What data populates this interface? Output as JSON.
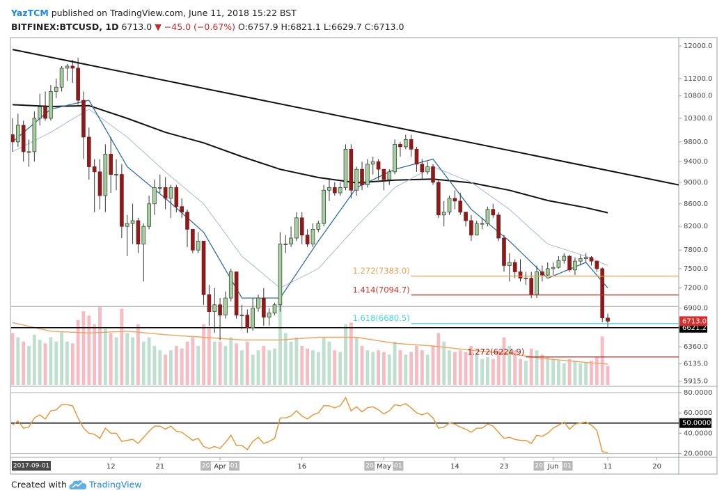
{
  "header": {
    "author": "YazTCM",
    "byline": "published on TradingView.com, June 11, 2018 15:22 BST",
    "symbol": "BITFINEX:BTCUSD, 1D",
    "last": "6713.0",
    "change": "▼ −45.0 (−0.67%)",
    "ohlc": "O:6757.9 H:6821.1 L:6629.7 C:6713.0"
  },
  "footer": {
    "text": "Created with",
    "brand": "TradingView"
  },
  "chart_data": {
    "type": "candlestick",
    "log": true,
    "xlim": [
      "2018-02-22",
      "2018-06-24"
    ],
    "ylim": [
      5868,
      12195
    ],
    "x": [
      "2018-02-22",
      "2018-02-23",
      "2018-02-24",
      "2018-02-25",
      "2018-02-26",
      "2018-02-27",
      "2018-02-28",
      "2018-03-01",
      "2018-03-02",
      "2018-03-03",
      "2018-03-04",
      "2018-03-05",
      "2018-03-06",
      "2018-03-07",
      "2018-03-08",
      "2018-03-09",
      "2018-03-10",
      "2018-03-11",
      "2018-03-12",
      "2018-03-13",
      "2018-03-14",
      "2018-03-15",
      "2018-03-16",
      "2018-03-17",
      "2018-03-18",
      "2018-03-19",
      "2018-03-20",
      "2018-03-21",
      "2018-03-22",
      "2018-03-23",
      "2018-03-24",
      "2018-03-25",
      "2018-03-26",
      "2018-03-27",
      "2018-03-28",
      "2018-03-29",
      "2018-03-30",
      "2018-03-31",
      "2018-04-01",
      "2018-04-02",
      "2018-04-03",
      "2018-04-04",
      "2018-04-05",
      "2018-04-06",
      "2018-04-07",
      "2018-04-08",
      "2018-04-09",
      "2018-04-10",
      "2018-04-11",
      "2018-04-12",
      "2018-04-13",
      "2018-04-14",
      "2018-04-15",
      "2018-04-16",
      "2018-04-17",
      "2018-04-18",
      "2018-04-19",
      "2018-04-20",
      "2018-04-21",
      "2018-04-22",
      "2018-04-23",
      "2018-04-24",
      "2018-04-25",
      "2018-04-26",
      "2018-04-27",
      "2018-04-28",
      "2018-04-29",
      "2018-04-30",
      "2018-05-01",
      "2018-05-02",
      "2018-05-03",
      "2018-05-04",
      "2018-05-05",
      "2018-05-06",
      "2018-05-07",
      "2018-05-08",
      "2018-05-09",
      "2018-05-10",
      "2018-05-11",
      "2018-05-12",
      "2018-05-13",
      "2018-05-14",
      "2018-05-15",
      "2018-05-16",
      "2018-05-17",
      "2018-05-18",
      "2018-05-19",
      "2018-05-20",
      "2018-05-21",
      "2018-05-22",
      "2018-05-23",
      "2018-05-24",
      "2018-05-25",
      "2018-05-26",
      "2018-05-27",
      "2018-05-28",
      "2018-05-29",
      "2018-05-30",
      "2018-05-31",
      "2018-06-01",
      "2018-06-02",
      "2018-06-03",
      "2018-06-04",
      "2018-06-05",
      "2018-06-06",
      "2018-06-07",
      "2018-06-08",
      "2018-06-09",
      "2018-06-10",
      "2018-06-11"
    ],
    "open": [
      9950,
      9800,
      10150,
      9600,
      9600,
      10300,
      10550,
      10300,
      10900,
      11000,
      11450,
      11500,
      11450,
      10700,
      9900,
      9300,
      9200,
      8750,
      9550,
      9150,
      9150,
      8200,
      8250,
      8300,
      7900,
      8200,
      8600,
      8900,
      8900,
      8700,
      8900,
      8550,
      8450,
      8150,
      7800,
      7950,
      7100,
      6850,
      6950,
      6800,
      7050,
      7450,
      6800,
      6800,
      6620,
      6900,
      7050,
      6770,
      6830,
      6950,
      7900,
      7900,
      8000,
      8350,
      8050,
      7900,
      8150,
      8250,
      8850,
      8900,
      8800,
      8900,
      9650,
      8850,
      9250,
      8950,
      9350,
      9400,
      9250,
      9050,
      9200,
      9750,
      9700,
      9850,
      9650,
      9350,
      9200,
      9300,
      9000,
      8400,
      8450,
      8700,
      8650,
      8450,
      8300,
      8050,
      8250,
      8250,
      8500,
      8400,
      8000,
      7550,
      7600,
      7450,
      7350,
      7350,
      7100,
      7450,
      7400,
      7500,
      7520,
      7630,
      7700,
      7480,
      7620,
      7660,
      7680,
      7620,
      7500,
      6757.9
    ],
    "high": [
      10300,
      10400,
      10250,
      9850,
      10450,
      10850,
      10900,
      11050,
      11200,
      11500,
      11550,
      11650,
      11700,
      10900,
      10100,
      9450,
      9450,
      9750,
      9900,
      9450,
      9350,
      8400,
      8600,
      8350,
      8250,
      8750,
      9050,
      9150,
      9100,
      8950,
      8950,
      8700,
      8500,
      8150,
      8100,
      7950,
      7250,
      7200,
      7050,
      7150,
      7500,
      7450,
      6950,
      6880,
      7050,
      7100,
      7200,
      6900,
      6980,
      8100,
      8050,
      8200,
      8450,
      8450,
      8150,
      8250,
      8300,
      8950,
      9050,
      9000,
      9000,
      9750,
      9750,
      9300,
      9400,
      9450,
      9500,
      9450,
      9250,
      9250,
      9850,
      9800,
      9950,
      9950,
      9700,
      9450,
      9400,
      9350,
      9050,
      8650,
      8750,
      8850,
      8800,
      8450,
      8400,
      8300,
      8350,
      8550,
      8600,
      8450,
      8050,
      7750,
      7650,
      7650,
      7450,
      7450,
      7550,
      7550,
      7600,
      7600,
      7700,
      7750,
      7720,
      7680,
      7720,
      7750,
      7700,
      7630,
      7520,
      6821.1
    ],
    "low": [
      9600,
      9700,
      9400,
      9300,
      9400,
      10150,
      10250,
      10250,
      10750,
      10900,
      11150,
      11100,
      10600,
      9450,
      9050,
      8450,
      8500,
      8450,
      8800,
      8850,
      8000,
      7700,
      7900,
      7750,
      7300,
      8150,
      8400,
      8800,
      8500,
      8350,
      8450,
      8350,
      7850,
      7750,
      7750,
      6950,
      6650,
      6550,
      6450,
      6750,
      7000,
      6750,
      6600,
      6550,
      6580,
      6850,
      6650,
      6650,
      6800,
      6850,
      7750,
      7850,
      7950,
      7900,
      7850,
      7850,
      8100,
      8200,
      8650,
      8750,
      8750,
      8850,
      8700,
      8750,
      8850,
      8900,
      9150,
      9050,
      8850,
      8950,
      9150,
      9500,
      9650,
      9500,
      9200,
      9050,
      9150,
      8950,
      8350,
      8200,
      8400,
      8500,
      8400,
      8200,
      7950,
      8050,
      8150,
      8200,
      8350,
      7950,
      7450,
      7300,
      7350,
      7300,
      7250,
      7050,
      7050,
      7300,
      7380,
      7400,
      7500,
      7580,
      7450,
      7400,
      7550,
      7600,
      7550,
      7450,
      6700,
      6629.7
    ],
    "close": [
      9800,
      10150,
      9600,
      9600,
      10300,
      10550,
      10300,
      10900,
      11000,
      11450,
      11500,
      11450,
      10700,
      9900,
      9300,
      9200,
      8750,
      9550,
      9150,
      9150,
      8200,
      8250,
      8300,
      7900,
      8200,
      8600,
      8900,
      8900,
      8700,
      8900,
      8550,
      8450,
      8150,
      7800,
      7950,
      7100,
      6850,
      6950,
      6800,
      7050,
      7450,
      6800,
      6800,
      6620,
      6900,
      7050,
      6770,
      6830,
      6950,
      7900,
      7900,
      8000,
      8350,
      8050,
      7900,
      8150,
      8250,
      8850,
      8900,
      8800,
      8900,
      9650,
      8850,
      9250,
      8950,
      9350,
      9400,
      9250,
      9050,
      9200,
      9750,
      9700,
      9850,
      9650,
      9350,
      9200,
      9300,
      9000,
      8400,
      8450,
      8700,
      8650,
      8450,
      8300,
      8050,
      8250,
      8250,
      8500,
      8400,
      8000,
      7550,
      7600,
      7450,
      7350,
      7350,
      7100,
      7450,
      7400,
      7500,
      7520,
      7630,
      7700,
      7480,
      7620,
      7660,
      7680,
      7620,
      7500,
      6760,
      6713.0
    ],
    "up_color": "#a6cf9e",
    "down_color": "#8b1c1c",
    "volume": {
      "ylim": [
        0,
        400
      ],
      "up_color": "#bfe0cf",
      "down_color": "#f6bcc4",
      "values": [
        60,
        55,
        50,
        45,
        58,
        52,
        48,
        55,
        50,
        62,
        50,
        48,
        75,
        85,
        80,
        70,
        90,
        65,
        60,
        55,
        88,
        60,
        55,
        70,
        50,
        55,
        45,
        40,
        35,
        40,
        45,
        42,
        50,
        55,
        45,
        70,
        65,
        50,
        50,
        45,
        55,
        48,
        40,
        50,
        35,
        40,
        45,
        40,
        42,
        95,
        60,
        50,
        55,
        45,
        42,
        40,
        38,
        55,
        50,
        40,
        38,
        70,
        72,
        55,
        45,
        40,
        38,
        40,
        38,
        35,
        50,
        40,
        35,
        38,
        45,
        40,
        35,
        45,
        60,
        50,
        40,
        38,
        40,
        38,
        45,
        35,
        30,
        32,
        30,
        40,
        55,
        45,
        40,
        30,
        28,
        42,
        40,
        35,
        32,
        30,
        28,
        25,
        30,
        28,
        25,
        26,
        28,
        32,
        56,
        22
      ],
      "ma": {
        "color": "#f0a35a",
        "x": [
          "2018-02-22",
          "2018-03-01",
          "2018-03-08",
          "2018-03-15",
          "2018-03-22",
          "2018-03-29",
          "2018-04-05",
          "2018-04-12",
          "2018-04-19",
          "2018-04-26",
          "2018-05-03",
          "2018-05-10",
          "2018-05-17",
          "2018-05-24",
          "2018-05-31",
          "2018-06-07",
          "2018-06-11"
        ],
        "values": [
          72,
          62,
          60,
          62,
          58,
          55,
          52,
          52,
          55,
          55,
          48,
          45,
          40,
          36,
          30,
          26,
          24
        ]
      }
    },
    "ma_lines": [
      {
        "color": "#111111",
        "width": 2,
        "x": [
          "2018-02-22",
          "2018-03-01",
          "2018-03-08",
          "2018-03-15",
          "2018-03-22",
          "2018-03-29",
          "2018-04-05",
          "2018-04-12",
          "2018-04-19",
          "2018-04-26",
          "2018-05-03",
          "2018-05-10",
          "2018-05-17",
          "2018-05-24",
          "2018-05-31",
          "2018-06-07",
          "2018-06-11"
        ],
        "values": [
          10600,
          10560,
          10580,
          10300,
          10000,
          9780,
          9500,
          9250,
          9090,
          8990,
          9040,
          9060,
          8990,
          8850,
          8660,
          8530,
          8440
        ]
      },
      {
        "color": "#aeb4e0",
        "width": 1,
        "x": [
          "2018-02-22",
          "2018-03-01",
          "2018-03-08",
          "2018-03-15",
          "2018-03-22",
          "2018-03-29",
          "2018-04-05",
          "2018-04-12",
          "2018-04-19",
          "2018-04-26",
          "2018-05-03",
          "2018-05-10",
          "2018-05-17",
          "2018-05-24",
          "2018-05-31",
          "2018-06-07",
          "2018-06-11"
        ],
        "values": [
          9600,
          10000,
          10500,
          9900,
          9200,
          8600,
          7700,
          7200,
          7500,
          8200,
          8900,
          9300,
          9000,
          8500,
          7900,
          7700,
          7550
        ]
      },
      {
        "color": "#2f6f9f",
        "width": 1.3,
        "x": [
          "2018-02-22",
          "2018-03-01",
          "2018-03-08",
          "2018-03-15",
          "2018-03-22",
          "2018-03-29",
          "2018-04-05",
          "2018-04-12",
          "2018-04-19",
          "2018-04-26",
          "2018-05-03",
          "2018-05-10",
          "2018-05-17",
          "2018-05-24",
          "2018-05-31",
          "2018-06-07",
          "2018-06-11"
        ],
        "values": [
          9800,
          10500,
          10700,
          9300,
          8700,
          8100,
          7050,
          7050,
          7950,
          8900,
          9250,
          9450,
          8500,
          7950,
          7350,
          7600,
          7200
        ]
      }
    ],
    "trendline": {
      "color": "#111111",
      "x": [
        "2018-02-22",
        "2018-06-24"
      ],
      "values": [
        11910,
        8950
      ]
    },
    "hlines": [
      {
        "value": 6925,
        "color": "#b0b0b0"
      },
      {
        "value": 6621.2,
        "color": "#000000",
        "label": "6621.2"
      }
    ],
    "levels": [
      {
        "label": "1.272(7383.0)",
        "value": 7383.0,
        "color": "#e8a24a",
        "start": "2018-05-06"
      },
      {
        "label": "1.414(7094.7)",
        "value": 7094.7,
        "color": "#c0392b",
        "start": "2018-05-06"
      },
      {
        "label": "1.618(6680.5)",
        "value": 6680.5,
        "color": "#3fd4e8",
        "start": "2018-05-06"
      },
      {
        "label": "1.272(6224.9)",
        "value": 6224.9,
        "color": "#a31515",
        "start": "2018-05-27"
      }
    ],
    "last_price": {
      "value": 6713.0,
      "label": "6713.0",
      "color": "#d32f2f"
    },
    "yticks": [
      {
        "value": 12000,
        "label": "12000.0"
      },
      {
        "value": 11200,
        "label": "11200.0"
      },
      {
        "value": 10800,
        "label": "10800.0"
      },
      {
        "value": 10300,
        "label": "10300.0"
      },
      {
        "value": 9800,
        "label": "9800.0"
      },
      {
        "value": 9400,
        "label": "9400.0"
      },
      {
        "value": 9000,
        "label": "9000.0"
      },
      {
        "value": 8600,
        "label": "8600.0"
      },
      {
        "value": 8200,
        "label": "8200.0"
      },
      {
        "value": 7800,
        "label": "7800.0"
      },
      {
        "value": 7500,
        "label": "7500.0"
      },
      {
        "value": 7200,
        "label": "7200.0"
      },
      {
        "value": 6900,
        "label": "6900.0"
      },
      {
        "value": 6360,
        "label": "6360.0"
      },
      {
        "value": 6135,
        "label": "6135.0"
      },
      {
        "value": 5915,
        "label": "5915.0"
      }
    ],
    "xticks": [
      {
        "value": "2018-03-12",
        "label": "12"
      },
      {
        "value": "2018-03-21",
        "label": "21"
      },
      {
        "value": "2018-04-01",
        "label": "Apr"
      },
      {
        "value": "2018-04-16",
        "label": "16"
      },
      {
        "value": "2018-05-01",
        "label": "May"
      },
      {
        "value": "2018-05-14",
        "label": "14"
      },
      {
        "value": "2018-05-23",
        "label": "23"
      },
      {
        "value": "2018-06-01",
        "label": "Jun"
      },
      {
        "value": "2018-06-11",
        "label": "11"
      },
      {
        "value": "2018-06-20",
        "label": "20"
      }
    ],
    "date_flags": [
      "2017-09-01",
      "2018-04-01",
      "2018-05-01",
      "2018-06-01"
    ],
    "rsi": {
      "color": "#e39a3c",
      "ylim": [
        17,
        84
      ],
      "values": [
        48,
        52,
        45,
        46,
        55,
        58,
        54,
        62,
        63,
        68,
        68,
        67,
        55,
        45,
        40,
        39,
        35,
        45,
        40,
        40,
        32,
        33,
        34,
        30,
        36,
        42,
        47,
        47,
        44,
        47,
        42,
        41,
        37,
        33,
        35,
        27,
        25,
        27,
        25,
        31,
        38,
        28,
        28,
        24,
        32,
        36,
        30,
        32,
        35,
        55,
        55,
        57,
        62,
        57,
        54,
        58,
        60,
        67,
        67,
        65,
        67,
        75,
        62,
        66,
        61,
        65,
        66,
        63,
        59,
        62,
        68,
        67,
        69,
        65,
        60,
        58,
        60,
        55,
        45,
        46,
        50,
        49,
        46,
        44,
        41,
        45,
        45,
        49,
        47,
        41,
        35,
        36,
        34,
        33,
        33,
        30,
        38,
        37,
        40,
        45,
        48,
        51,
        44,
        49,
        50,
        51,
        48,
        43,
        22,
        21
      ],
      "yticks": [
        {
          "value": 80,
          "label": "80.0000"
        },
        {
          "value": 60,
          "label": "60.0000"
        },
        {
          "value": 40,
          "label": "40.0000"
        },
        {
          "value": 20,
          "label": "20.0000"
        }
      ],
      "levels": [
        {
          "value": 80,
          "color": "#b5b5b5"
        },
        {
          "value": 50,
          "color": "#000000",
          "label": "50.0000"
        },
        {
          "value": 20,
          "color": "#b5b5b5"
        }
      ]
    }
  }
}
